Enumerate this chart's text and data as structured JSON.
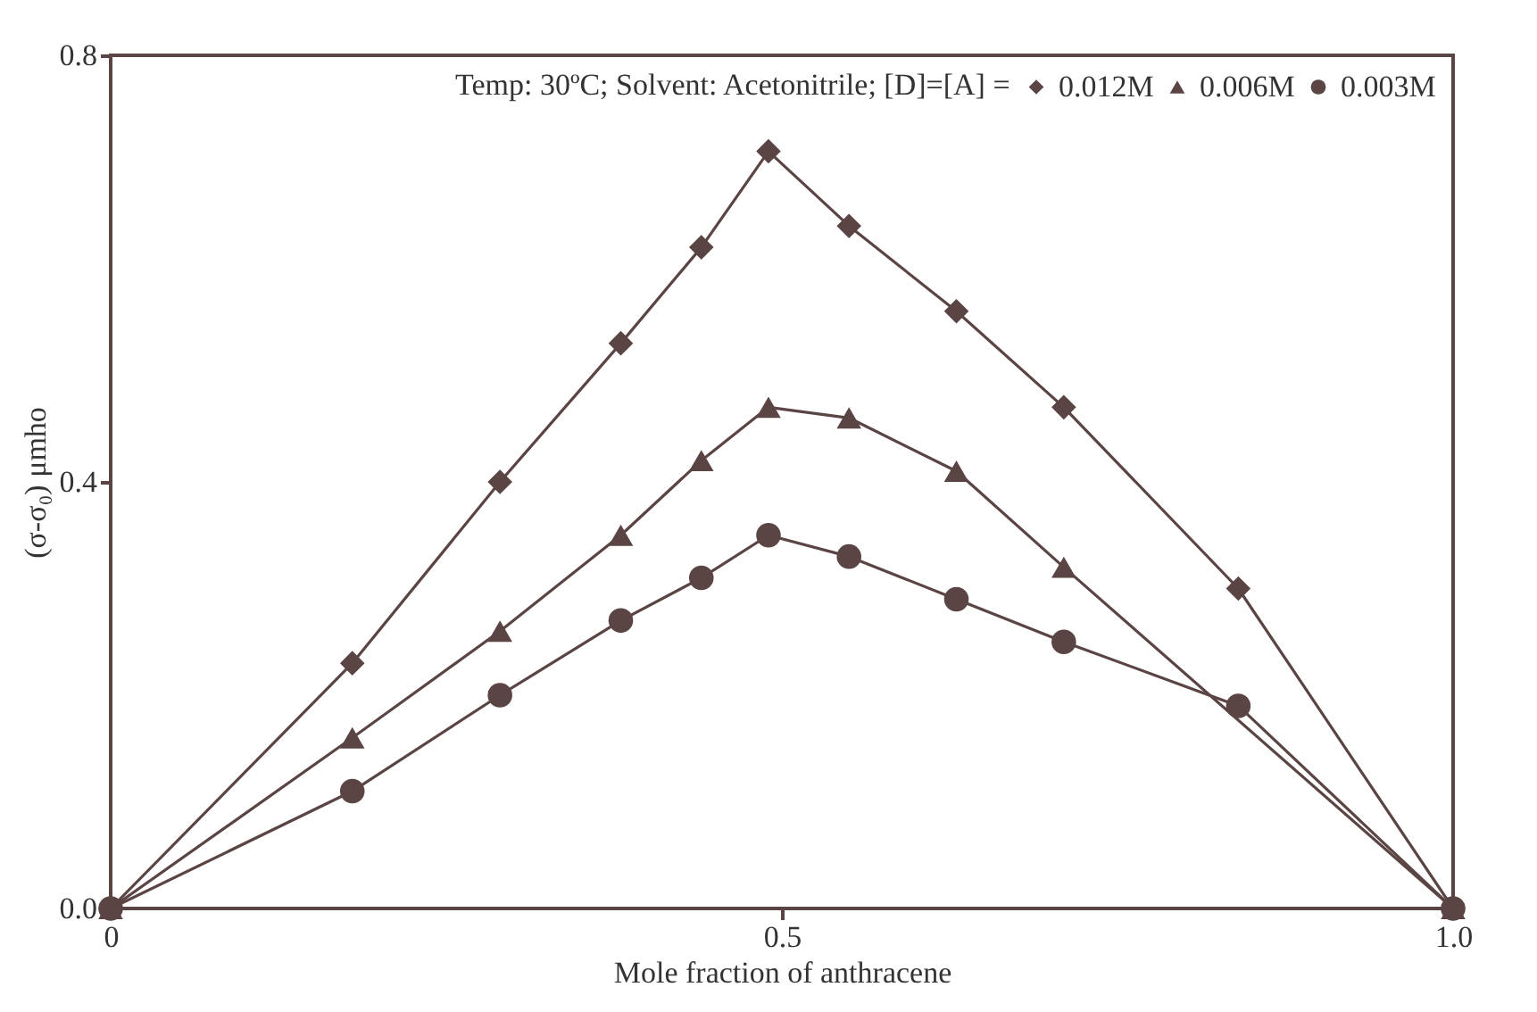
{
  "chart_data": {
    "type": "line",
    "xlabel": "Mole fraction of anthracene",
    "ylabel": "(σ-σ₀) μmho",
    "legend_title": "Temp: 30ºC; Solvent: Acetonitrile; [D]=[A] =",
    "legend": "top right",
    "grid": false,
    "line_style": "solid",
    "xlim": [
      0,
      1
    ],
    "ylim": [
      0,
      0.8
    ],
    "xticks": [
      0,
      0.5,
      {
        "value": 1,
        "label": "1.0"
      }
    ],
    "yticks": [
      {
        "value": 0,
        "label": "0.0"
      },
      0.4,
      0.8
    ],
    "series": [
      {
        "name": "0.012M",
        "color": "#5a4444",
        "marker": "diamond",
        "x": [
          0,
          0.18,
          0.29,
          0.38,
          0.44,
          0.49,
          0.55,
          0.63,
          0.71,
          0.84,
          1
        ],
        "values": [
          0,
          0.23,
          0.4,
          0.53,
          0.62,
          0.71,
          0.64,
          0.56,
          0.47,
          0.3,
          0
        ]
      },
      {
        "name": "0.006M",
        "color": "#5a4444",
        "marker": "triangle",
        "x": [
          0,
          0.18,
          0.29,
          0.38,
          0.44,
          0.49,
          0.55,
          0.63,
          0.71,
          1
        ],
        "values": [
          0,
          0.16,
          0.26,
          0.35,
          0.42,
          0.47,
          0.46,
          0.41,
          0.32,
          0
        ]
      },
      {
        "name": "0.003M",
        "color": "#5a4444",
        "marker": "circle",
        "x": [
          0,
          0.18,
          0.29,
          0.38,
          0.44,
          0.49,
          0.55,
          0.63,
          0.71,
          0.84,
          1
        ],
        "values": [
          0,
          0.11,
          0.2,
          0.27,
          0.31,
          0.35,
          0.33,
          0.29,
          0.25,
          0.19,
          0
        ]
      }
    ]
  }
}
